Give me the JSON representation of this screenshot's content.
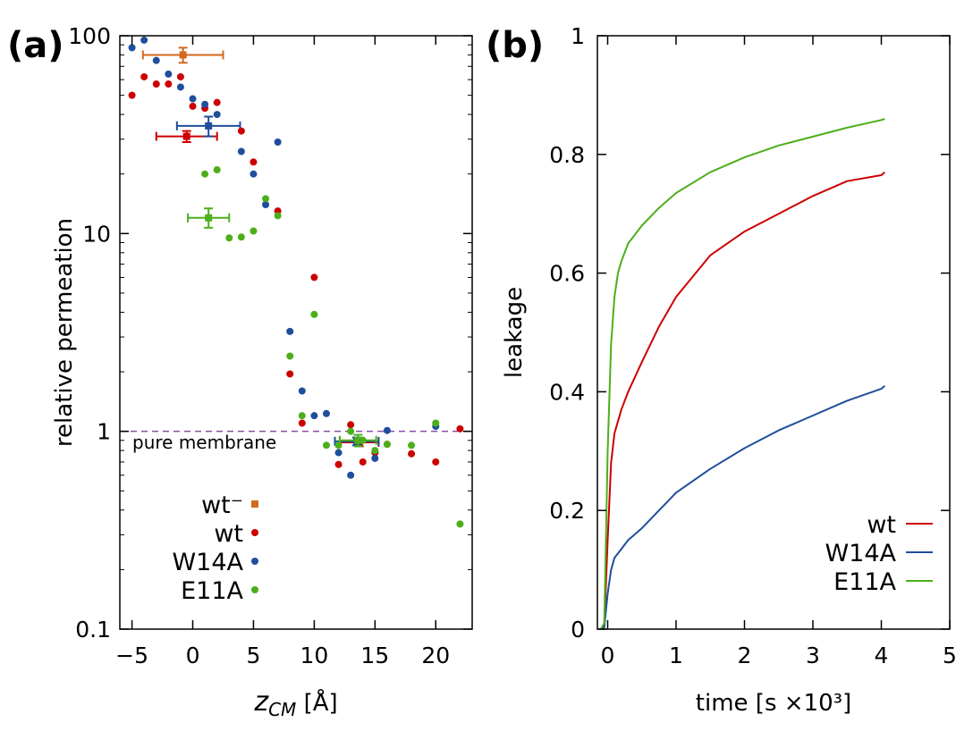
{
  "figure": {
    "panel_a_label": "(a)",
    "panel_b_label": "(b)"
  },
  "chart_data": [
    {
      "type": "scatter",
      "panel": "(a)",
      "title": "",
      "xlabel_main": "z",
      "xlabel_sub": "CM",
      "xlabel_unit": " [Å]",
      "ylabel": "relative permeation",
      "xlim": [
        -6,
        23
      ],
      "ylim": [
        0.1,
        100
      ],
      "yscale": "log",
      "xticks": [
        -5,
        0,
        5,
        10,
        15,
        20
      ],
      "xtick_labels": [
        "−5",
        "0",
        "5",
        "10",
        "15",
        "20"
      ],
      "yticks": [
        0.1,
        1,
        10,
        100
      ],
      "ytick_labels": [
        "0.1",
        "1",
        "10",
        "100"
      ],
      "reference_line": {
        "y": 1,
        "label": "pure membrane",
        "color": "#8a4fa8",
        "style": "dashed"
      },
      "legend": {
        "position": "bottom-left",
        "entries": [
          {
            "name": "wt⁻",
            "marker": "square",
            "color": "#d2691e"
          },
          {
            "name": "wt",
            "marker": "circle",
            "color": "#cc0000"
          },
          {
            "name": "W14A",
            "marker": "circle",
            "color": "#1f4e9c"
          },
          {
            "name": "E11A",
            "marker": "circle",
            "color": "#4caf1a"
          }
        ]
      },
      "series": [
        {
          "name": "wt",
          "color": "#cc0000",
          "marker": "circle",
          "x": [
            -5,
            -4,
            -3,
            -2,
            -1,
            0,
            1,
            2,
            4,
            5,
            7,
            8,
            9,
            10,
            12,
            13,
            14,
            15,
            16,
            18,
            20,
            22
          ],
          "y": [
            50,
            62,
            57,
            57,
            62,
            44,
            43,
            46,
            33,
            23,
            13,
            1.95,
            1.1,
            6,
            0.68,
            1.08,
            0.7,
            0.78,
            0.86,
            0.77,
            0.7,
            1.03
          ]
        },
        {
          "name": "W14A",
          "color": "#1f4e9c",
          "marker": "circle",
          "x": [
            -5,
            -4,
            -3,
            -2,
            -1,
            0,
            1,
            2,
            4,
            5,
            6,
            7,
            8,
            9,
            10,
            11,
            12,
            13,
            14,
            15,
            16,
            20
          ],
          "y": [
            87,
            95,
            75,
            64,
            55,
            48,
            45,
            40,
            26,
            20,
            14,
            29,
            3.2,
            1.6,
            1.2,
            1.23,
            0.78,
            0.6,
            0.9,
            0.73,
            1.01,
            1.06
          ]
        },
        {
          "name": "E11A",
          "color": "#4caf1a",
          "marker": "circle",
          "x": [
            1,
            2,
            3,
            4,
            5,
            6,
            7,
            8,
            9,
            10,
            11,
            12,
            13,
            14,
            15,
            16,
            18,
            20,
            22
          ],
          "y": [
            20,
            21,
            9.5,
            9.6,
            10.3,
            15,
            12.3,
            2.4,
            1.2,
            3.9,
            0.85,
            0.85,
            1.0,
            0.9,
            0.8,
            0.86,
            0.85,
            1.1,
            0.34
          ]
        },
        {
          "name": "wt⁻",
          "color": "#d2691e",
          "marker": "square",
          "x": [
            -0.8
          ],
          "y": [
            80
          ],
          "xerr": [
            3.3
          ],
          "yerr_lo": [
            73
          ],
          "yerr_hi": [
            87
          ]
        }
      ],
      "error_points": [
        {
          "series": "wt",
          "color": "#cc0000",
          "x": -0.5,
          "y": 31,
          "xerr": 2.5,
          "yerr_lo": 29,
          "yerr_hi": 33
        },
        {
          "series": "W14A",
          "color": "#1f4e9c",
          "x": 1.3,
          "y": 35,
          "xerr": 2.6,
          "yerr_lo": 31,
          "yerr_hi": 39
        },
        {
          "series": "E11A",
          "color": "#4caf1a",
          "x": 1.3,
          "y": 12,
          "xerr": 1.7,
          "yerr_lo": 10.7,
          "yerr_hi": 13.4
        },
        {
          "series": "wt",
          "color": "#cc0000",
          "x": 13.7,
          "y": 0.88,
          "xerr": 1.6,
          "yerr_lo": 0.84,
          "yerr_hi": 0.92
        },
        {
          "series": "W14A",
          "color": "#1f4e9c",
          "x": 13.5,
          "y": 0.89,
          "xerr": 1.8,
          "yerr_lo": 0.85,
          "yerr_hi": 0.93
        },
        {
          "series": "E11A",
          "color": "#4caf1a",
          "x": 13.6,
          "y": 0.9,
          "xerr": 1.5,
          "yerr_lo": 0.84,
          "yerr_hi": 0.96
        }
      ]
    },
    {
      "type": "line",
      "panel": "(b)",
      "title": "",
      "xlabel": "time [s ×10³]",
      "ylabel": "leakage",
      "xlim": [
        -0.15,
        5
      ],
      "ylim": [
        0,
        1
      ],
      "xticks": [
        0,
        1,
        2,
        3,
        4,
        5
      ],
      "xtick_labels": [
        "0",
        "1",
        "2",
        "3",
        "4",
        "5"
      ],
      "yticks": [
        0,
        0.2,
        0.4,
        0.6,
        0.8,
        1
      ],
      "ytick_labels": [
        "0",
        "0.2",
        "0.4",
        "0.6",
        "0.8",
        "1"
      ],
      "legend": {
        "position": "bottom-right",
        "entries": [
          {
            "name": "wt",
            "color": "#cc0000"
          },
          {
            "name": "W14A",
            "color": "#1f4e9c"
          },
          {
            "name": "E11A",
            "color": "#4caf1a"
          }
        ]
      },
      "series": [
        {
          "name": "wt",
          "color": "#cc0000",
          "x": [
            -0.1,
            -0.05,
            0,
            0.05,
            0.1,
            0.2,
            0.3,
            0.5,
            0.75,
            1,
            1.5,
            2,
            2.5,
            3,
            3.5,
            4,
            4.05
          ],
          "y": [
            0,
            0.005,
            0.15,
            0.28,
            0.33,
            0.37,
            0.4,
            0.45,
            0.51,
            0.56,
            0.63,
            0.67,
            0.7,
            0.73,
            0.755,
            0.765,
            0.77
          ]
        },
        {
          "name": "W14A",
          "color": "#1f4e9c",
          "x": [
            -0.1,
            -0.05,
            0,
            0.05,
            0.1,
            0.2,
            0.3,
            0.5,
            0.75,
            1,
            1.5,
            2,
            2.5,
            3,
            3.5,
            4,
            4.05
          ],
          "y": [
            0,
            0.003,
            0.06,
            0.1,
            0.12,
            0.135,
            0.15,
            0.17,
            0.2,
            0.23,
            0.27,
            0.305,
            0.335,
            0.36,
            0.385,
            0.405,
            0.41
          ]
        },
        {
          "name": "E11A",
          "color": "#4caf1a",
          "x": [
            -0.1,
            -0.05,
            0,
            0.05,
            0.1,
            0.15,
            0.2,
            0.3,
            0.5,
            0.75,
            1,
            1.5,
            2,
            2.5,
            3,
            3.5,
            4,
            4.05
          ],
          "y": [
            0,
            0.01,
            0.3,
            0.48,
            0.56,
            0.6,
            0.62,
            0.65,
            0.68,
            0.71,
            0.735,
            0.77,
            0.795,
            0.815,
            0.83,
            0.845,
            0.858,
            0.86
          ]
        }
      ]
    }
  ]
}
